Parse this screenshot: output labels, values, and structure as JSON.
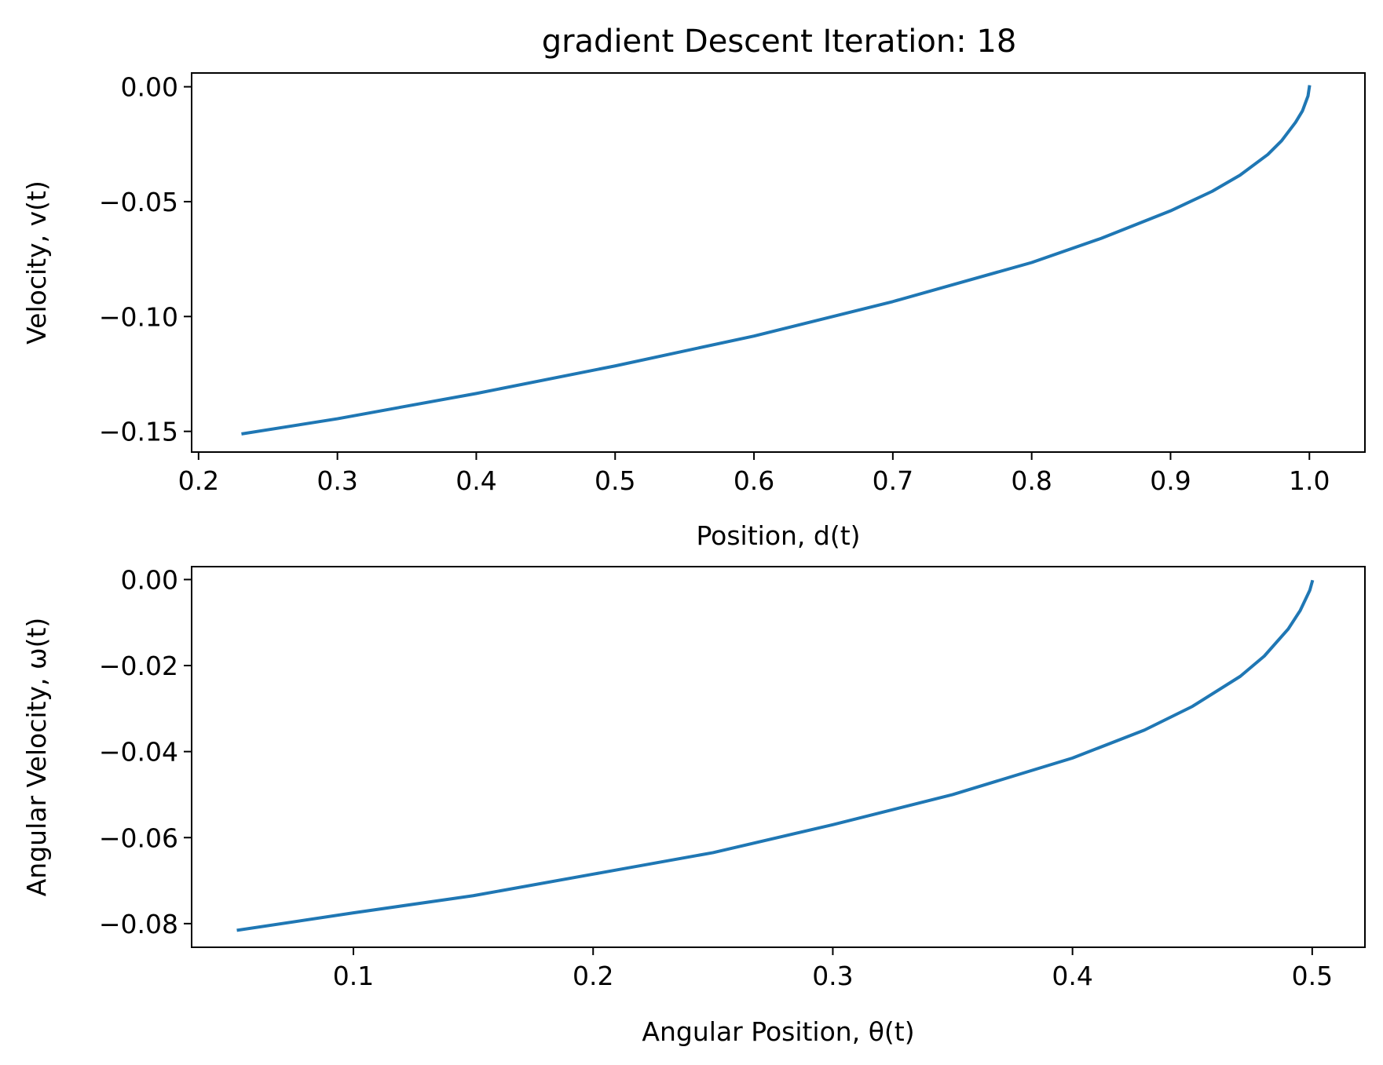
{
  "chart_data": [
    {
      "type": "line",
      "title": "gradient Descent Iteration: 18",
      "xlabel": "Position, d(t)",
      "ylabel": "Velocity, v(t)",
      "xlim": [
        0.195,
        1.04
      ],
      "ylim": [
        -0.159,
        0.006
      ],
      "xticks": [
        0.2,
        0.3,
        0.4,
        0.5,
        0.6,
        0.7,
        0.8,
        0.9,
        1.0
      ],
      "xtick_labels": [
        "0.2",
        "0.3",
        "0.4",
        "0.5",
        "0.6",
        "0.7",
        "0.8",
        "0.9",
        "1.0"
      ],
      "yticks": [
        0.0,
        -0.05,
        -0.1,
        -0.15
      ],
      "ytick_labels": [
        "0.00",
        "−0.05",
        "−0.10",
        "−0.15"
      ],
      "grid": false,
      "color": "#1f77b4",
      "series": [
        {
          "x": [
            0.232,
            0.3,
            0.4,
            0.5,
            0.6,
            0.7,
            0.8,
            0.85,
            0.9,
            0.93,
            0.95,
            0.97,
            0.98,
            0.99,
            0.995,
            0.999,
            1.0
          ],
          "y": [
            -0.151,
            -0.1445,
            -0.1335,
            -0.1215,
            -0.1085,
            -0.0935,
            -0.0765,
            -0.066,
            -0.054,
            -0.0455,
            -0.0385,
            -0.0295,
            -0.0235,
            -0.0155,
            -0.0105,
            -0.004,
            0.0
          ]
        }
      ]
    },
    {
      "type": "line",
      "title": "",
      "xlabel": "Angular Position, θ(t)",
      "ylabel": "Angular Velocity, ω(t)",
      "xlim": [
        0.0325,
        0.522
      ],
      "ylim": [
        -0.0855,
        0.003
      ],
      "xticks": [
        0.1,
        0.2,
        0.3,
        0.4,
        0.5
      ],
      "xtick_labels": [
        "0.1",
        "0.2",
        "0.3",
        "0.4",
        "0.5"
      ],
      "yticks": [
        0.0,
        -0.02,
        -0.04,
        -0.06,
        -0.08
      ],
      "ytick_labels": [
        "0.00",
        "−0.02",
        "−0.04",
        "−0.06",
        "−0.08"
      ],
      "grid": false,
      "color": "#1f77b4",
      "series": [
        {
          "x": [
            0.052,
            0.1,
            0.15,
            0.2,
            0.25,
            0.3,
            0.35,
            0.4,
            0.43,
            0.45,
            0.47,
            0.48,
            0.49,
            0.495,
            0.499,
            0.5
          ],
          "y": [
            -0.0815,
            -0.0775,
            -0.0735,
            -0.0685,
            -0.0635,
            -0.057,
            -0.05,
            -0.0415,
            -0.035,
            -0.0295,
            -0.0225,
            -0.0178,
            -0.0115,
            -0.0072,
            -0.0025,
            -0.0005
          ]
        }
      ]
    }
  ]
}
